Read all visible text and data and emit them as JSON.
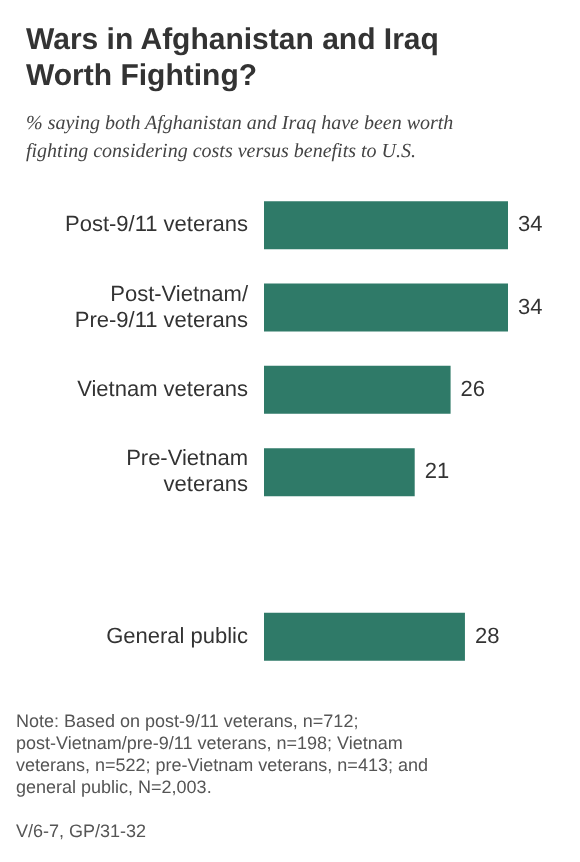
{
  "chart_data": {
    "type": "bar",
    "orientation": "horizontal",
    "title": "Wars in Afghanistan and Iraq Worth Fighting?",
    "subtitle": "% saying both Afghanistan and Iraq have been worth fighting considering costs versus benefits to U.S.",
    "categories": [
      "Post-9/11 veterans",
      "Post-Vietnam/\nPre-9/11 veterans",
      "Vietnam veterans",
      "Pre-Vietnam\nveterans",
      null,
      "General public"
    ],
    "values": [
      34,
      34,
      26,
      21,
      null,
      28
    ],
    "color": "#2f7a68",
    "data_labels": true,
    "annotations": [
      "Note: Based on post-9/11 veterans, n=712; post-Vietnam/pre-9/11 veterans, n=198; Vietnam veterans, n=522; pre-Vietnam veterans, n=413; and general public, N=2,003.",
      "V/6-7, GP/31-32"
    ]
  }
}
